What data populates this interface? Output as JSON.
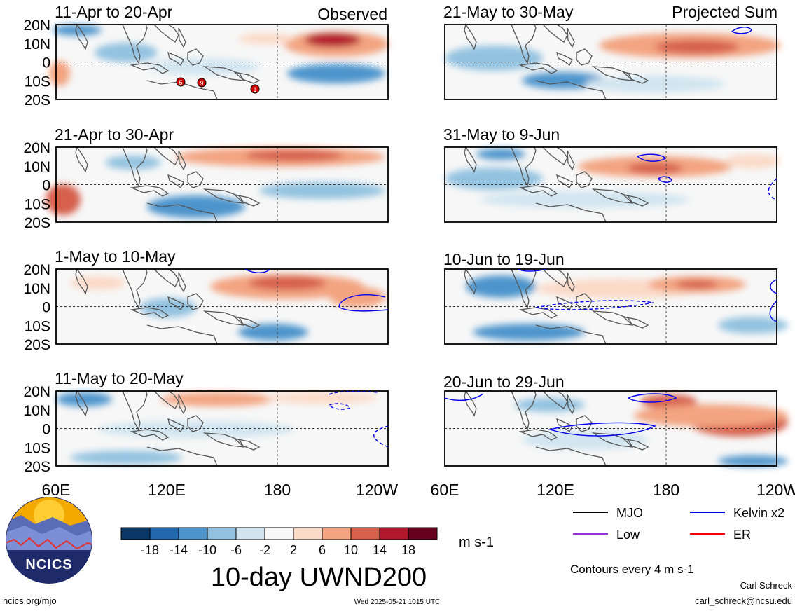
{
  "panels": [
    {
      "title": "11-Apr to 20-Apr",
      "tag": "Observed"
    },
    {
      "title": "21-Apr to 30-Apr",
      "tag": ""
    },
    {
      "title": "1-May to 10-May",
      "tag": ""
    },
    {
      "title": "11-May to 20-May",
      "tag": ""
    },
    {
      "title": "21-May to 30-May",
      "tag": "Projected Sum"
    },
    {
      "title": "31-May to 9-Jun",
      "tag": ""
    },
    {
      "title": "10-Jun to 19-Jun",
      "tag": ""
    },
    {
      "title": "20-Jun to 29-Jun",
      "tag": ""
    }
  ],
  "lat_labels": [
    "20N",
    "10N",
    "0",
    "10S",
    "20S"
  ],
  "lon_labels": [
    "60E",
    "120E",
    "180",
    "120W"
  ],
  "colorbar": {
    "ticks": [
      "-18",
      "-14",
      "-10",
      "-6",
      "-2",
      "2",
      "6",
      "10",
      "14",
      "18"
    ],
    "colors": [
      "#0b3766",
      "#2168b0",
      "#4e94cc",
      "#93c2e0",
      "#d1e5f0",
      "#f7f7f7",
      "#fbdac8",
      "#f3a481",
      "#d6604d",
      "#b2182b",
      "#67001f"
    ],
    "units": "m s-1",
    "title": "10-day UWND200"
  },
  "legend": {
    "items": [
      {
        "label": "MJO",
        "color": "#000000"
      },
      {
        "label": "Kelvin x2",
        "color": "#0000ee"
      },
      {
        "label": "Low",
        "color": "#9933cc"
      },
      {
        "label": "ER",
        "color": "#ee0000"
      }
    ],
    "contours_note": "Contours every 4 m s-1"
  },
  "storm_markers": [
    "5",
    "9",
    "1"
  ],
  "logo_text": "NCICS",
  "footer": {
    "left": "ncics.org/mjo",
    "center": "Wed 2025-05-21 1015 UTC",
    "author": "Carl Schreck",
    "email": "carl_schreck@ncsu.edu"
  }
}
